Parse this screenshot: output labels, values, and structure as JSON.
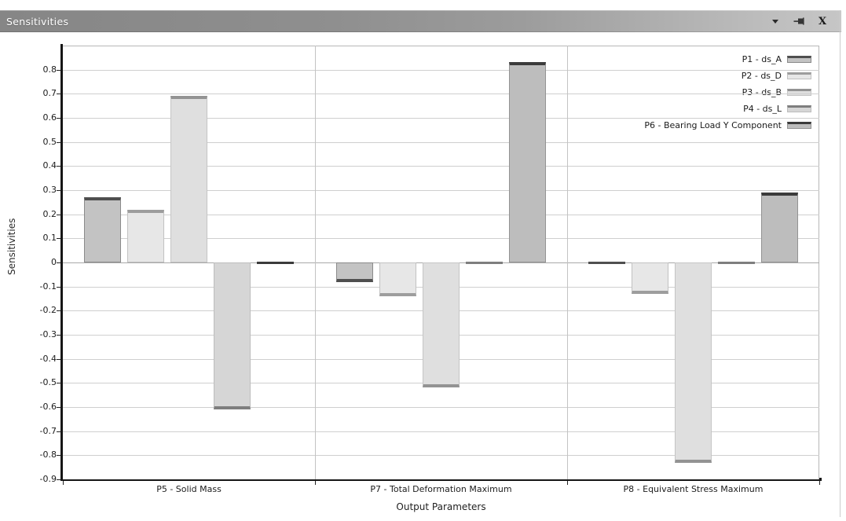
{
  "window": {
    "title": "Sensitivities",
    "icons": {
      "menu": "chevron-down",
      "pin": "auto-hide-pin",
      "close_glyph": "X"
    }
  },
  "chart_data": {
    "type": "bar",
    "title": "Sensitivities",
    "xlabel": "Output Parameters",
    "ylabel": "Sensitivities",
    "ylim": [
      -0.9,
      0.9
    ],
    "yticks": [
      0.8,
      0.7,
      0.6,
      0.5,
      0.4,
      0.3,
      0.2,
      0.1,
      0,
      -0.1,
      -0.2,
      -0.3,
      -0.4,
      -0.5,
      -0.6,
      -0.7,
      -0.8,
      -0.9
    ],
    "grid": true,
    "legend_position": "top-right",
    "categories": [
      "P5 - Solid Mass",
      "P7 - Total Deformation Maximum",
      "P8 - Equivalent Stress Maximum"
    ],
    "series": [
      {
        "name": "P1 - ds_A",
        "values": [
          0.27,
          -0.08,
          0
        ],
        "fill": "#c3c3c3",
        "edge": "#8a8a8a",
        "cap": "#4f4f4f"
      },
      {
        "name": "P2 - ds_D",
        "values": [
          0.22,
          -0.14,
          -0.13
        ],
        "fill": "#e7e7e7",
        "edge": "#c2c2c2",
        "cap": "#9d9d9d"
      },
      {
        "name": "P3 - ds_B",
        "values": [
          0.69,
          -0.52,
          -0.83
        ],
        "fill": "#dfdfdf",
        "edge": "#c5c5c5",
        "cap": "#939393"
      },
      {
        "name": "P4 - ds_L",
        "values": [
          -0.61,
          0,
          0
        ],
        "fill": "#d6d6d6",
        "edge": "#bdbdbd",
        "cap": "#7e7e7e"
      },
      {
        "name": "P6 - Bearing Load Y Component",
        "values": [
          0,
          0.83,
          0.29
        ],
        "fill": "#bdbdbd",
        "edge": "#939393",
        "cap": "#3b3b3b"
      }
    ]
  }
}
